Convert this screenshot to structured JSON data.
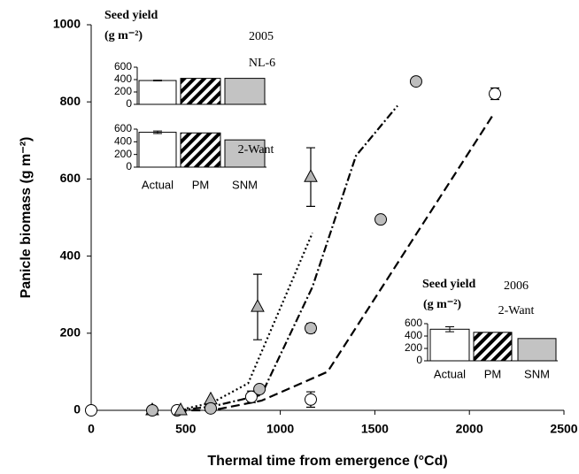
{
  "chart_data": [
    {
      "type": "scatter",
      "xlabel": "Thermal time from emergence (°Cd)",
      "ylabel": "Panicle biomass (g m⁻²)",
      "xlim": [
        0,
        2500
      ],
      "xticks": [
        0,
        500,
        1000,
        1500,
        2000,
        2500
      ],
      "ylim": [
        0,
        1000
      ],
      "yticks": [
        0,
        200,
        400,
        600,
        800,
        1000
      ],
      "series": [
        {
          "marker": "line",
          "style": "dotted",
          "color": "#000000",
          "x": [
            460,
            640,
            830,
            1170
          ],
          "values": [
            0,
            20,
            70,
            460
          ]
        },
        {
          "marker": "line",
          "style": "dashdot",
          "color": "#000000",
          "x": [
            460,
            640,
            900,
            1170,
            1400,
            1620
          ],
          "values": [
            0,
            10,
            40,
            320,
            660,
            790
          ]
        },
        {
          "marker": "line",
          "style": "dashed",
          "color": "#000000",
          "x": [
            460,
            640,
            900,
            1250,
            2130
          ],
          "values": [
            0,
            0,
            25,
            100,
            770
          ]
        },
        {
          "marker": "circle",
          "color": "#ffffff",
          "x": [
            0,
            454,
            847,
            1161,
            2135
          ],
          "values": [
            0,
            0,
            35,
            28,
            821
          ],
          "errors": [
            null,
            null,
            15,
            20,
            15
          ]
        },
        {
          "marker": "triangle",
          "color": "#b4b4b4",
          "x": [
            323,
            473,
            632,
            880,
            1161
          ],
          "values": [
            0,
            0,
            28,
            268,
            605
          ],
          "errors": [
            null,
            null,
            null,
            85,
            76
          ]
        },
        {
          "marker": "circle",
          "color": "#bdbdbd",
          "x": [
            323,
            632,
            890,
            1161,
            1531,
            1718
          ],
          "values": [
            0,
            5,
            55,
            213,
            495,
            853
          ],
          "errors": [
            null,
            null,
            null,
            12,
            null,
            null
          ]
        }
      ]
    },
    {
      "type": "bar",
      "title": "Seed yield",
      "unit": "(g m⁻²)",
      "year": "2005",
      "site": "NL-6",
      "categories": [
        null,
        null,
        null
      ],
      "values": [
        385,
        420,
        420
      ],
      "errors": [
        6,
        null,
        null
      ],
      "fills": [
        "#ffffff",
        "hatched",
        "#c3c3c3"
      ],
      "ylim": [
        0,
        600
      ],
      "yticks": [
        0,
        200,
        400,
        600
      ]
    },
    {
      "type": "bar",
      "site": "2-Want",
      "categories": [
        "Actual",
        "PM",
        "SNM"
      ],
      "values": [
        550,
        540,
        430
      ],
      "errors": [
        20,
        null,
        null
      ],
      "fills": [
        "#ffffff",
        "hatched",
        "#c3c3c3"
      ],
      "ylim": [
        0,
        600
      ],
      "yticks": [
        0,
        200,
        400,
        600
      ]
    },
    {
      "type": "bar",
      "title": "Seed yield",
      "unit": "(g m⁻²)",
      "year": "2006",
      "site": "2-Want",
      "categories": [
        "Actual",
        "PM",
        "SNM"
      ],
      "values": [
        510,
        460,
        360
      ],
      "errors": [
        40,
        null,
        null
      ],
      "fills": [
        "#ffffff",
        "hatched",
        "#c3c3c3"
      ],
      "ylim": [
        0,
        600
      ],
      "yticks": [
        0,
        200,
        400,
        600
      ]
    }
  ]
}
